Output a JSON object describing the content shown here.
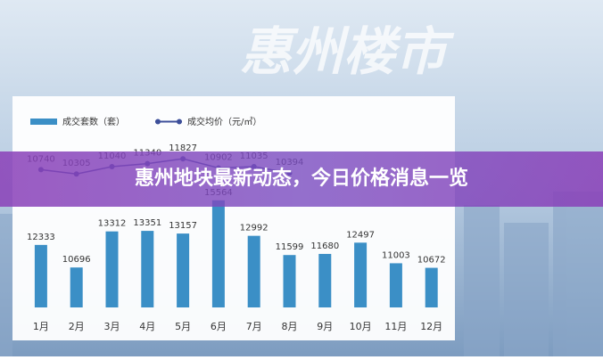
{
  "watermark": "惠州楼市",
  "banner": "惠州地块最新动态，今日价格消息一览",
  "chart_data": {
    "type": "bar",
    "categories": [
      "1月",
      "2月",
      "3月",
      "4月",
      "5月",
      "6月",
      "7月",
      "8月",
      "9月",
      "10月",
      "11月",
      "12月"
    ],
    "ylim": [
      7800,
      20400
    ],
    "y2lim": [
      -3100,
      14350
    ],
    "series": [
      {
        "name": "成交套数（套）",
        "type": "bar",
        "color": "#3b8fc6",
        "values": [
          12333,
          10696,
          13312,
          13351,
          13157,
          15564,
          12992,
          11599,
          11680,
          12497,
          11003,
          10672
        ]
      },
      {
        "name": "成交均价（元/㎡）",
        "type": "line",
        "axis": "y2",
        "color": "#3d4f9a",
        "values": [
          10740,
          10305,
          11040,
          11340,
          11827,
          10902,
          11035,
          10394,
          null,
          null,
          null,
          null
        ]
      }
    ]
  }
}
